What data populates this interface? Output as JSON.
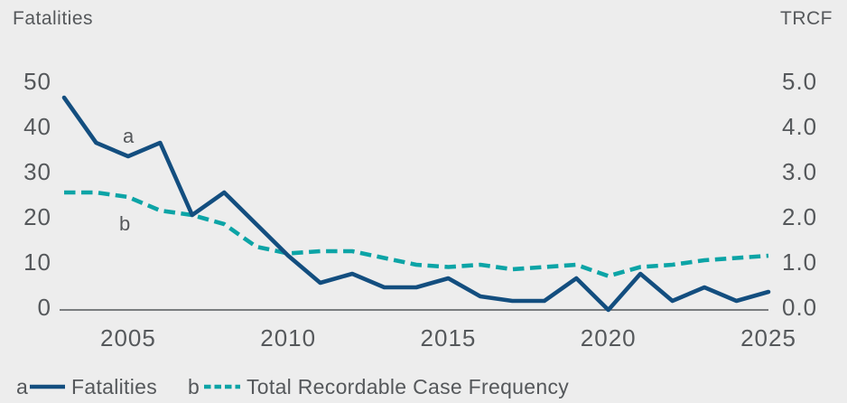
{
  "header": {
    "left_axis_title": "Fatalities",
    "right_axis_title": "TRCF"
  },
  "colors": {
    "background": "#EDEDED",
    "fatalities_line": "#134E7F",
    "trcf_line": "#0CA4A6",
    "text": "#55585B",
    "axis_line": "#55585B"
  },
  "legend": [
    {
      "key": "a",
      "label": "Fatalities",
      "style": "solid"
    },
    {
      "key": "b",
      "label": "Total Recordable Case Frequency",
      "style": "dashed"
    }
  ],
  "chart_data": {
    "type": "line",
    "x": [
      2003,
      2004,
      2005,
      2006,
      2007,
      2008,
      2009,
      2010,
      2011,
      2012,
      2013,
      2014,
      2015,
      2016,
      2017,
      2018,
      2019,
      2020,
      2021,
      2022,
      2023,
      2024,
      2025
    ],
    "series": [
      {
        "name": "Fatalities",
        "marker": "a",
        "axis": "left",
        "line": "solid",
        "values": [
          47,
          37,
          34,
          37,
          21,
          26,
          19,
          12,
          6,
          8,
          5,
          5,
          7,
          3,
          2,
          2,
          7,
          0,
          8,
          2,
          5,
          2,
          4
        ]
      },
      {
        "name": "Total Recordable Case Frequency",
        "marker": "b",
        "axis": "right",
        "line": "dashed",
        "values": [
          2.6,
          2.6,
          2.5,
          2.2,
          2.1,
          1.9,
          1.4,
          1.25,
          1.3,
          1.3,
          1.15,
          1.0,
          0.95,
          1.0,
          0.9,
          0.95,
          1.0,
          0.75,
          0.95,
          1.0,
          1.1,
          1.15,
          1.2
        ]
      }
    ],
    "left_axis": {
      "title": "Fatalities",
      "ticks": [
        0,
        10,
        20,
        30,
        40,
        50
      ],
      "range": [
        0,
        50
      ]
    },
    "right_axis": {
      "title": "TRCF",
      "ticks": [
        "0.0",
        "1.0",
        "2.0",
        "3.0",
        "4.0",
        "5.0"
      ],
      "range": [
        0,
        5
      ]
    },
    "x_axis": {
      "ticks": [
        2005,
        2010,
        2015,
        2020,
        2025
      ],
      "range": [
        2003,
        2025
      ]
    },
    "grid": false,
    "legend_position": "bottom"
  }
}
